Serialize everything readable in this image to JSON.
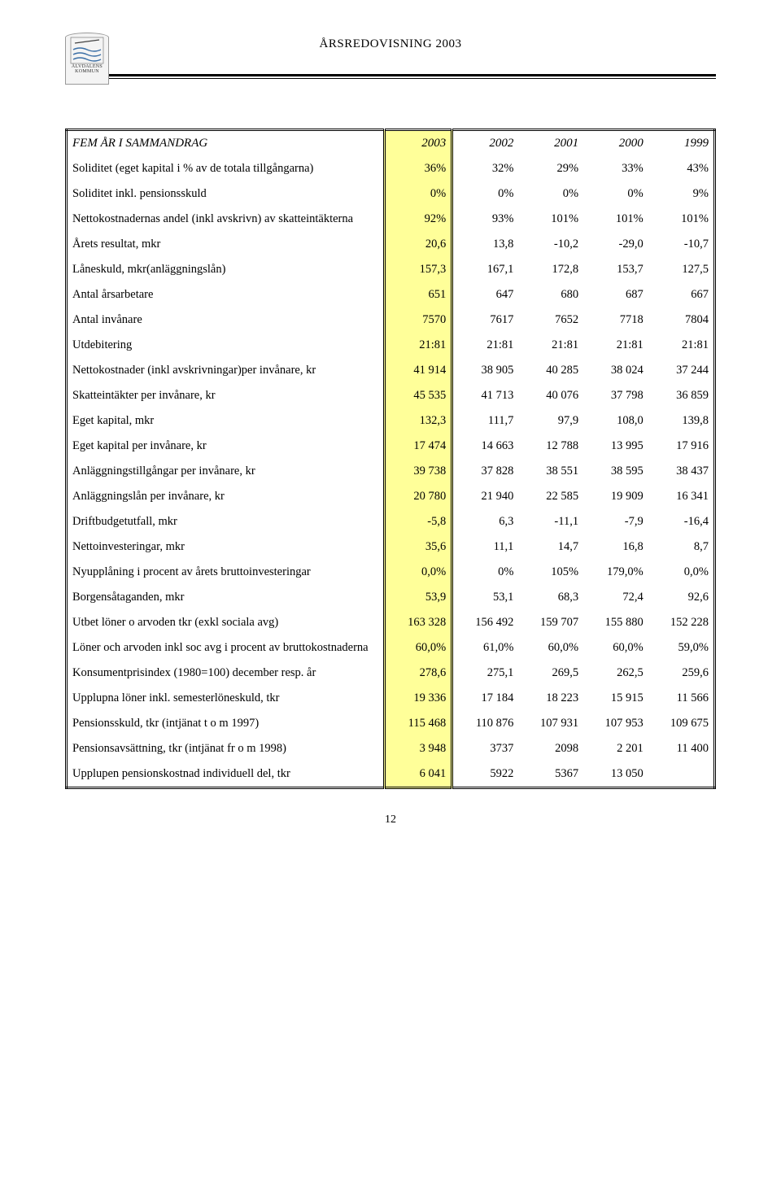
{
  "header": {
    "doc_title": "ÅRSREDOVISNING 2003",
    "logo_line1": "ÄLVDALENS",
    "logo_line2": "KOMMUN"
  },
  "page_number": "12",
  "table": {
    "title": "FEM ÅR I SAMMANDRAG",
    "year_cols": [
      "2003",
      "2002",
      "2001",
      "2000",
      "1999"
    ],
    "highlight_col_bg": "#ffff99",
    "rows": [
      {
        "label": "Soliditet  (eget kapital i % av de totala tillgångarna)",
        "v": [
          "36%",
          "32%",
          "29%",
          "33%",
          "43%"
        ]
      },
      {
        "label": "Soliditet inkl. pensionsskuld",
        "v": [
          "0%",
          "0%",
          "0%",
          "0%",
          "9%"
        ]
      },
      {
        "label": "Nettokostnadernas andel (inkl avskrivn) av skatteintäkterna",
        "v": [
          "92%",
          "93%",
          "101%",
          "101%",
          "101%"
        ]
      },
      {
        "label": "Årets resultat, mkr",
        "v": [
          "20,6",
          "13,8",
          "-10,2",
          "-29,0",
          "-10,7"
        ]
      },
      {
        "label": "Låneskuld, mkr(anläggningslån)",
        "v": [
          "157,3",
          "167,1",
          "172,8",
          "153,7",
          "127,5"
        ]
      },
      {
        "label": "Antal årsarbetare",
        "v": [
          "651",
          "647",
          "680",
          "687",
          "667"
        ]
      },
      {
        "label": "Antal invånare",
        "v": [
          "7570",
          "7617",
          "7652",
          "7718",
          "7804"
        ]
      },
      {
        "label": "Utdebitering",
        "v": [
          "21:81",
          "21:81",
          "21:81",
          "21:81",
          "21:81"
        ]
      },
      {
        "label": "Nettokostnader (inkl avskrivningar)per invånare, kr",
        "v": [
          "41 914",
          "38 905",
          "40 285",
          "38 024",
          "37 244"
        ]
      },
      {
        "label": "Skatteintäkter per invånare, kr",
        "v": [
          "45 535",
          "41 713",
          "40 076",
          "37 798",
          "36 859"
        ]
      },
      {
        "label": "Eget kapital, mkr",
        "v": [
          "132,3",
          "111,7",
          "97,9",
          "108,0",
          "139,8"
        ]
      },
      {
        "label": "Eget kapital per invånare, kr",
        "v": [
          "17 474",
          "14 663",
          "12 788",
          "13 995",
          "17 916"
        ]
      },
      {
        "label": "Anläggningstillgångar per invånare, kr",
        "v": [
          "39 738",
          "37 828",
          "38 551",
          "38 595",
          "38 437"
        ]
      },
      {
        "label": "Anläggningslån per invånare, kr",
        "v": [
          "20 780",
          "21 940",
          "22 585",
          "19 909",
          "16 341"
        ]
      },
      {
        "label": "Driftbudgetutfall, mkr",
        "v": [
          "-5,8",
          "6,3",
          "-11,1",
          "-7,9",
          "-16,4"
        ]
      },
      {
        "label": "Nettoinvesteringar, mkr",
        "v": [
          "35,6",
          "11,1",
          "14,7",
          "16,8",
          "8,7"
        ]
      },
      {
        "label": "Nyupplåning i procent av årets bruttoinvesteringar",
        "v": [
          "0,0%",
          "0%",
          "105%",
          "179,0%",
          "0,0%"
        ]
      },
      {
        "label": "Borgensåtaganden, mkr",
        "v": [
          "53,9",
          "53,1",
          "68,3",
          "72,4",
          "92,6"
        ]
      },
      {
        "label": "Utbet löner o arvoden tkr (exkl sociala avg)",
        "v": [
          "163 328",
          "156 492",
          "159 707",
          "155 880",
          "152 228"
        ]
      },
      {
        "label": "Löner och arvoden inkl soc avg i procent av bruttokostnaderna",
        "v": [
          "60,0%",
          "61,0%",
          "60,0%",
          "60,0%",
          "59,0%"
        ]
      },
      {
        "label": "Konsumentprisindex (1980=100) december resp. år",
        "v": [
          "278,6",
          "275,1",
          "269,5",
          "262,5",
          "259,6"
        ]
      },
      {
        "label": "Upplupna löner inkl. semesterlöneskuld, tkr",
        "v": [
          "19 336",
          "17 184",
          "18 223",
          "15 915",
          "11 566"
        ]
      },
      {
        "label": "Pensionsskuld, tkr (intjänat t o m 1997)",
        "v": [
          "115 468",
          "110 876",
          "107 931",
          "107 953",
          "109 675"
        ]
      },
      {
        "label": "Pensionsavsättning, tkr (intjänat fr o m 1998)",
        "v": [
          "3 948",
          "3737",
          "2098",
          "2 201",
          "11 400"
        ]
      },
      {
        "label": "Upplupen pensionskostnad individuell del, tkr",
        "v": [
          "6 041",
          "5922",
          "5367",
          "13 050",
          ""
        ]
      }
    ]
  }
}
